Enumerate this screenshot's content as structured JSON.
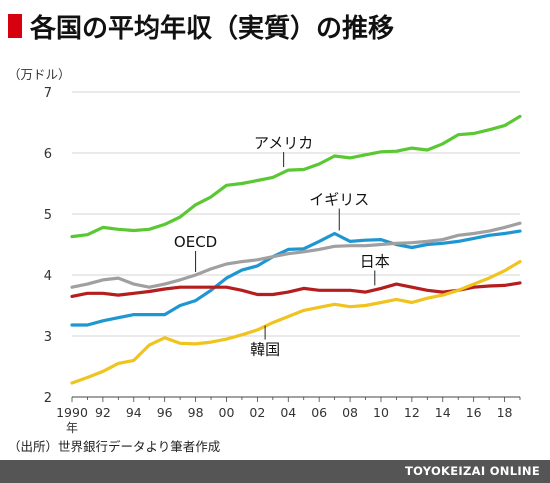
{
  "title": "各国の平均年収（実質）の推移",
  "source": "（出所）世界銀行データより筆者作成",
  "footer": "TOYOKEIZAI ONLINE",
  "colors": {
    "title_marker": "#d7000f",
    "footer_bg": "#555555"
  },
  "chart_data": {
    "type": "line",
    "title": "各国の平均年収（実質）の推移",
    "ylabel": "（万ドル）",
    "xlabel": "年",
    "ylim": [
      2,
      7
    ],
    "xlim": [
      1990,
      2019
    ],
    "y_ticks": [
      "2",
      "3",
      "4",
      "5",
      "6",
      "7"
    ],
    "x_tick_labels": [
      {
        "year": 1990,
        "label": "1990"
      },
      {
        "year": 1992,
        "label": "92"
      },
      {
        "year": 1994,
        "label": "94"
      },
      {
        "year": 1996,
        "label": "96"
      },
      {
        "year": 1998,
        "label": "98"
      },
      {
        "year": 2000,
        "label": "00"
      },
      {
        "year": 2002,
        "label": "02"
      },
      {
        "year": 2004,
        "label": "04"
      },
      {
        "year": 2006,
        "label": "06"
      },
      {
        "year": 2008,
        "label": "08"
      },
      {
        "year": 2010,
        "label": "10"
      },
      {
        "year": 2012,
        "label": "12"
      },
      {
        "year": 2014,
        "label": "14"
      },
      {
        "year": 2016,
        "label": "16"
      },
      {
        "year": 2018,
        "label": "18"
      }
    ],
    "x_unit_label": "年",
    "grid": "horizontal",
    "x": [
      1990,
      1991,
      1992,
      1993,
      1994,
      1995,
      1996,
      1997,
      1998,
      1999,
      2000,
      2001,
      2002,
      2003,
      2004,
      2005,
      2006,
      2007,
      2008,
      2009,
      2010,
      2011,
      2012,
      2013,
      2014,
      2015,
      2016,
      2017,
      2018,
      2019
    ],
    "series": [
      {
        "name": "アメリカ",
        "color": "#5ac832",
        "values": [
          4.63,
          4.66,
          4.78,
          4.75,
          4.73,
          4.75,
          4.83,
          4.95,
          5.15,
          5.28,
          5.47,
          5.5,
          5.55,
          5.6,
          5.72,
          5.73,
          5.82,
          5.95,
          5.92,
          5.97,
          6.02,
          6.03,
          6.08,
          6.05,
          6.15,
          6.3,
          6.32,
          6.38,
          6.45,
          6.6
        ]
      },
      {
        "name": "イギリス",
        "color": "#1e96d2",
        "values": [
          3.18,
          3.18,
          3.25,
          3.3,
          3.35,
          3.35,
          3.35,
          3.5,
          3.58,
          3.75,
          3.95,
          4.08,
          4.15,
          4.3,
          4.42,
          4.43,
          4.55,
          4.68,
          4.55,
          4.57,
          4.58,
          4.5,
          4.45,
          4.5,
          4.52,
          4.55,
          4.6,
          4.65,
          4.68,
          4.72
        ]
      },
      {
        "name": "OECD",
        "color": "#a0a0a0",
        "values": [
          3.8,
          3.85,
          3.92,
          3.95,
          3.85,
          3.8,
          3.85,
          3.92,
          4.0,
          4.1,
          4.18,
          4.22,
          4.25,
          4.3,
          4.35,
          4.38,
          4.42,
          4.47,
          4.48,
          4.48,
          4.5,
          4.52,
          4.53,
          4.55,
          4.58,
          4.65,
          4.68,
          4.72,
          4.78,
          4.85
        ]
      },
      {
        "name": "日本",
        "color": "#b41e1e",
        "values": [
          3.65,
          3.7,
          3.7,
          3.67,
          3.7,
          3.73,
          3.77,
          3.8,
          3.8,
          3.8,
          3.8,
          3.75,
          3.68,
          3.68,
          3.72,
          3.78,
          3.75,
          3.75,
          3.75,
          3.72,
          3.78,
          3.85,
          3.8,
          3.75,
          3.72,
          3.75,
          3.8,
          3.82,
          3.83,
          3.87
        ]
      },
      {
        "name": "韓国",
        "color": "#f0c31e",
        "values": [
          2.23,
          2.32,
          2.42,
          2.55,
          2.6,
          2.85,
          2.97,
          2.88,
          2.87,
          2.9,
          2.95,
          3.02,
          3.1,
          3.22,
          3.32,
          3.42,
          3.47,
          3.52,
          3.48,
          3.5,
          3.55,
          3.6,
          3.55,
          3.62,
          3.67,
          3.75,
          3.85,
          3.95,
          4.07,
          4.22
        ]
      }
    ]
  }
}
